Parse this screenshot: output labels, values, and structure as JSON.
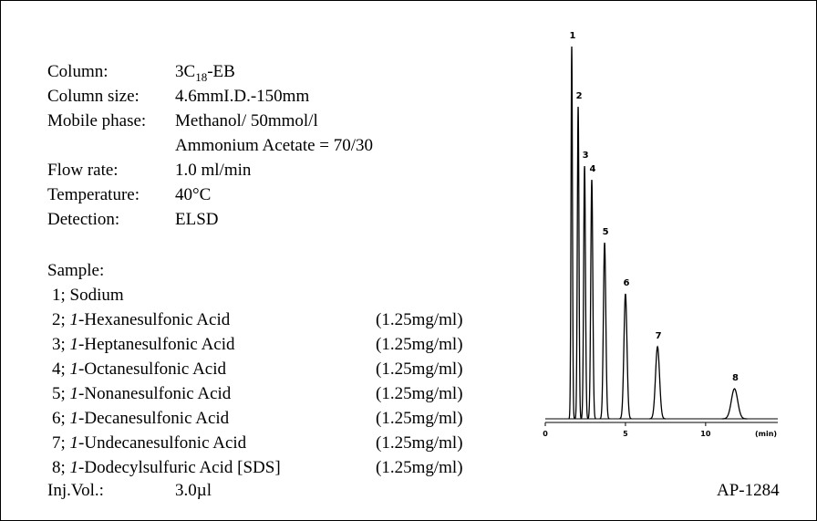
{
  "conditions": {
    "column": {
      "label": "Column:",
      "value_main": "3C",
      "value_sub": "18",
      "value_tail": "-EB"
    },
    "column_size": {
      "label": "Column size:",
      "value": "4.6mmI.D.-150mm"
    },
    "mobile_phase": {
      "label": "Mobile phase:",
      "lines": [
        "Methanol/ 50mmol/l",
        "Ammonium Acetate = 70/30"
      ]
    },
    "flow_rate": {
      "label": "Flow rate:",
      "value": "1.0 ml/min"
    },
    "temperature": {
      "label": "Temperature:",
      "value": "40°C"
    },
    "detection": {
      "label": "Detection:",
      "value": "ELSD"
    }
  },
  "sample": {
    "heading": "Sample:",
    "items": [
      {
        "index": "1;",
        "name": "Sodium"
      },
      {
        "index": "2;",
        "locant": "1",
        "name": "-Hexanesulfonic Acid",
        "concentration": "(1.25mg/ml)"
      },
      {
        "index": "3;",
        "locant": "1",
        "name": "-Heptanesulfonic Acid",
        "concentration": "(1.25mg/ml)"
      },
      {
        "index": "4;",
        "locant": "1",
        "name": "-Octanesulfonic Acid",
        "concentration": "(1.25mg/ml)"
      },
      {
        "index": "5;",
        "locant": "1",
        "name": "-Nonanesulfonic Acid",
        "concentration": "(1.25mg/ml)"
      },
      {
        "index": "6;",
        "locant": "1",
        "name": "-Decanesulfonic Acid",
        "concentration": "(1.25mg/ml)"
      },
      {
        "index": "7;",
        "locant": "1",
        "name": "-Undecanesulfonic Acid",
        "concentration": "(1.25mg/ml)"
      },
      {
        "index": "8;",
        "locant": "1",
        "name": "-Dodecylsulfuric Acid [SDS]",
        "concentration": "(1.25mg/ml)"
      }
    ]
  },
  "injection": {
    "label": "Inj.Vol.:",
    "value": "3.0µl"
  },
  "code": "AP-1284",
  "chart_data": {
    "type": "line",
    "x_label": "(min)",
    "xlim": [
      0,
      14.5
    ],
    "xticks": [
      0,
      5,
      10
    ],
    "ylim": [
      0,
      420
    ],
    "peak_labels": [
      "1",
      "2",
      "3",
      "4",
      "5",
      "6",
      "7",
      "8"
    ],
    "x": [
      1.65,
      2.05,
      2.45,
      2.9,
      3.7,
      5.0,
      7.0,
      11.8
    ],
    "values": [
      408,
      342,
      277,
      262,
      193,
      137,
      79,
      33
    ]
  }
}
